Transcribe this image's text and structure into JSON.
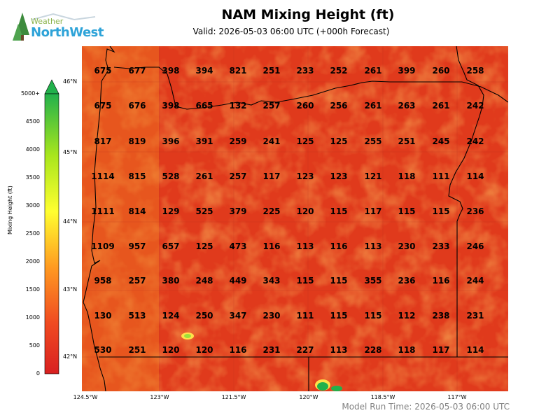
{
  "logo": {
    "word1": "Weather",
    "word2": "NorthWest"
  },
  "title": "NAM Mixing Height (ft)",
  "subtitle": "Valid: 2026-05-03 06:00 UTC  (+000h Forecast)",
  "footer": "Model Run Time: 2026-05-03 06:00 UTC",
  "colorbar": {
    "label": "Mixing Height (ft)",
    "ticks": [
      "5000+",
      "4500",
      "4000",
      "3500",
      "3000",
      "2500",
      "2000",
      "1500",
      "1000",
      "500",
      "0"
    ],
    "colors": [
      "#22b14c",
      "#a8e61d",
      "#ffff33",
      "#ffb020",
      "#f06020",
      "#d82020"
    ]
  },
  "lat_labels": [
    "46°N",
    "45°N",
    "44°N",
    "43°N",
    "42°N"
  ],
  "lon_labels": [
    "124.5°W",
    "123°W",
    "121.5°W",
    "120°W",
    "118.5°W",
    "117°W"
  ],
  "grid_values": [
    [
      "675",
      "677",
      "398",
      "394",
      "821",
      "251",
      "233",
      "252",
      "261",
      "399",
      "260",
      "258"
    ],
    [
      "675",
      "676",
      "398",
      "665",
      "132",
      "257",
      "260",
      "256",
      "261",
      "263",
      "261",
      "242"
    ],
    [
      "817",
      "819",
      "396",
      "391",
      "259",
      "241",
      "125",
      "125",
      "255",
      "251",
      "245",
      "242"
    ],
    [
      "1114",
      "815",
      "528",
      "261",
      "257",
      "117",
      "123",
      "123",
      "121",
      "118",
      "111",
      "114"
    ],
    [
      "1111",
      "814",
      "129",
      "525",
      "379",
      "225",
      "120",
      "115",
      "117",
      "115",
      "115",
      "236"
    ],
    [
      "1109",
      "957",
      "657",
      "125",
      "473",
      "116",
      "113",
      "116",
      "113",
      "230",
      "233",
      "246"
    ],
    [
      "958",
      "257",
      "380",
      "248",
      "449",
      "343",
      "115",
      "115",
      "355",
      "236",
      "116",
      "244"
    ],
    [
      "130",
      "513",
      "124",
      "250",
      "347",
      "230",
      "111",
      "115",
      "115",
      "112",
      "238",
      "231"
    ],
    [
      "530",
      "251",
      "120",
      "120",
      "116",
      "231",
      "227",
      "113",
      "228",
      "118",
      "117",
      "114"
    ]
  ]
}
